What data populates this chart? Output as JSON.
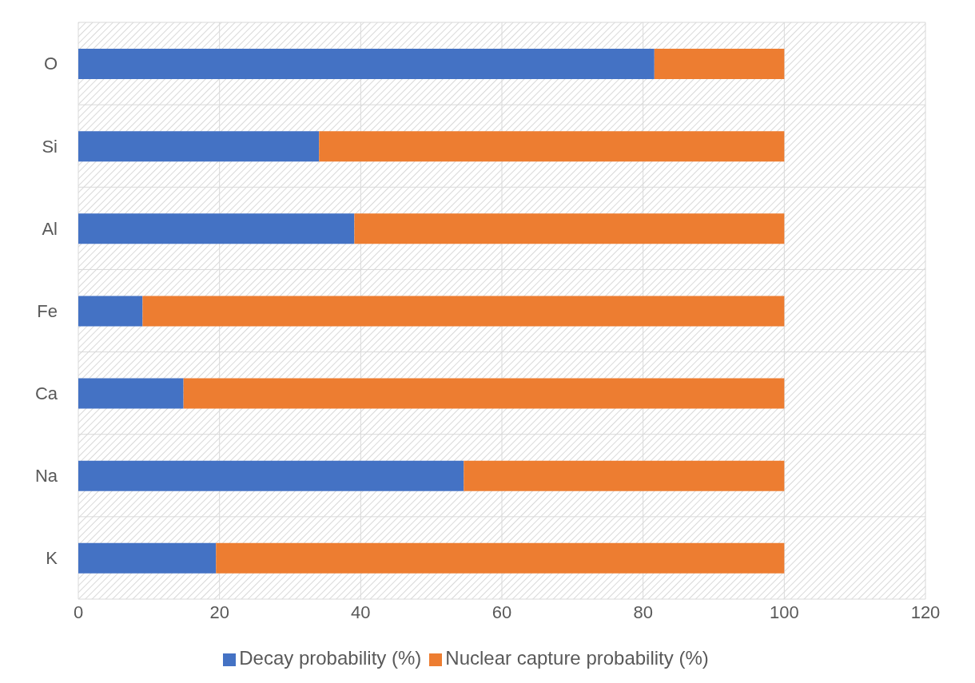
{
  "chart_data": {
    "type": "bar",
    "orientation": "horizontal",
    "stacked": true,
    "categories": [
      "O",
      "Si",
      "Al",
      "Fe",
      "Ca",
      "Na",
      "K"
    ],
    "series": [
      {
        "name": "Decay probability (%)",
        "color": "#4472c4",
        "values": [
          81.6,
          34.1,
          39.1,
          9.1,
          14.9,
          54.6,
          19.5
        ]
      },
      {
        "name": "Nuclear capture probability (%)",
        "color": "#ed7d31",
        "values": [
          18.4,
          65.9,
          60.9,
          90.9,
          85.1,
          45.4,
          80.5
        ]
      }
    ],
    "xlim": [
      0,
      120
    ],
    "xticks": [
      0,
      20,
      40,
      60,
      80,
      100,
      120
    ],
    "grid": true,
    "legend": "bottom"
  }
}
